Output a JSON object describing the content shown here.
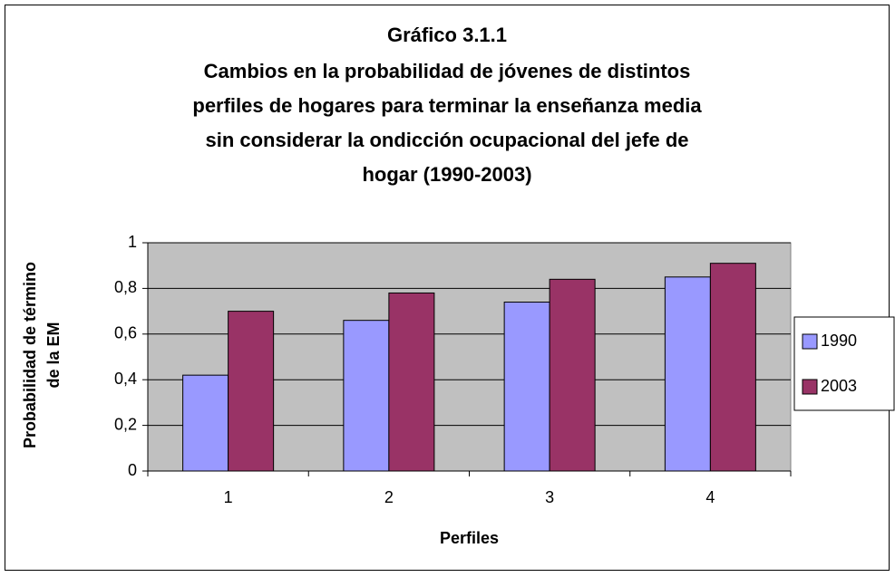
{
  "chart_data": {
    "type": "bar",
    "title": "Gráfico 3.1.1",
    "subtitle": [
      "Cambios en la probabilidad de jóvenes de distintos",
      "perfiles de hogares para terminar la enseñanza media",
      "sin considerar la ondicción ocupacional del jefe de",
      "hogar (1990-2003)"
    ],
    "x_label": "Perfiles",
    "y_label": [
      "Probabilidad de término",
      "de la EM"
    ],
    "categories": [
      "1",
      "2",
      "3",
      "4"
    ],
    "series": [
      {
        "name": "1990",
        "color": "#9999ff",
        "values": [
          0.42,
          0.66,
          0.74,
          0.85
        ]
      },
      {
        "name": "2003",
        "color": "#993366",
        "values": [
          0.7,
          0.78,
          0.84,
          0.91
        ]
      }
    ],
    "ylim": [
      0,
      1
    ],
    "yticks": [
      0,
      {
        "value": 0.2,
        "label": "0,2"
      },
      {
        "value": 0.4,
        "label": "0,4"
      },
      {
        "value": 0.6,
        "label": "0,6"
      },
      {
        "value": 0.8,
        "label": "0,8"
      },
      1
    ],
    "grid": true,
    "plot_background": "#c0c0c0",
    "legend": "right"
  }
}
